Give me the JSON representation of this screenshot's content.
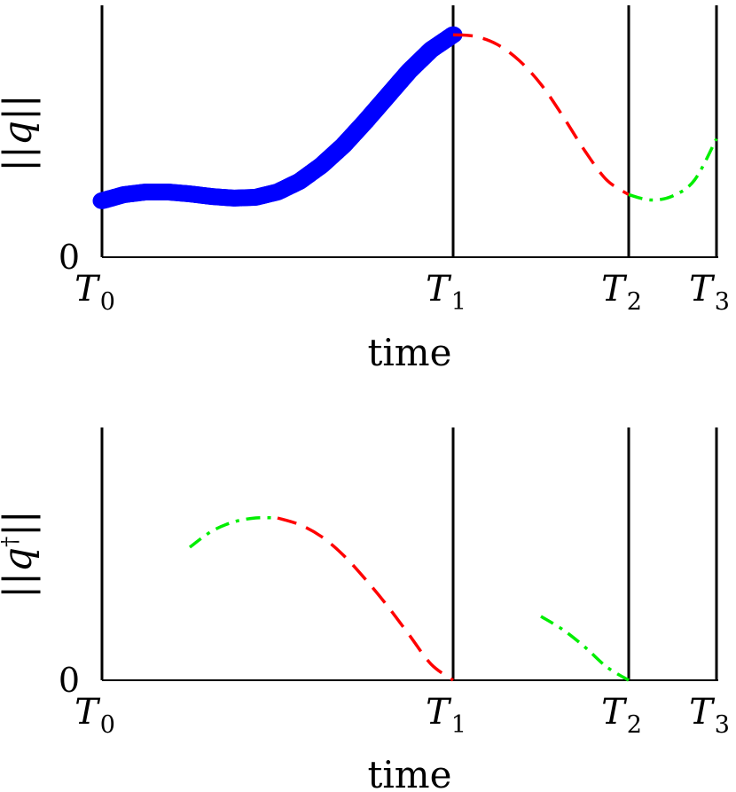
{
  "chart_data": [
    {
      "type": "line",
      "ylabel_prefix": "||",
      "ylabel_var": "q",
      "ylabel_sup": "",
      "ylabel_suffix": "||",
      "xlabel": "time",
      "y_zero_label": "0",
      "ylim": [
        0,
        1
      ],
      "x_ticks": [
        {
          "base": "T",
          "sub": "0",
          "x": 0
        },
        {
          "base": "T",
          "sub": "1",
          "x": 4
        },
        {
          "base": "T",
          "sub": "2",
          "x": 6
        },
        {
          "base": "T",
          "sub": "3",
          "x": 7
        }
      ],
      "vlines": [
        0,
        4,
        6,
        7
      ],
      "series": [
        {
          "style": "circles",
          "color": "#0000ff",
          "points": [
            [
              0,
              0.212
            ],
            [
              0.25,
              0.235
            ],
            [
              0.5,
              0.245
            ],
            [
              0.75,
              0.245
            ],
            [
              1,
              0.238
            ],
            [
              1.25,
              0.228
            ],
            [
              1.5,
              0.222
            ],
            [
              1.75,
              0.225
            ],
            [
              2,
              0.245
            ],
            [
              2.25,
              0.285
            ],
            [
              2.5,
              0.345
            ],
            [
              2.75,
              0.42
            ],
            [
              3,
              0.51
            ],
            [
              3.25,
              0.605
            ],
            [
              3.5,
              0.7
            ],
            [
              3.75,
              0.78
            ],
            [
              4,
              0.836
            ]
          ]
        },
        {
          "style": "dashed",
          "color": "#ff0000",
          "points": [
            [
              4,
              0.836
            ],
            [
              4.25,
              0.83
            ],
            [
              4.5,
              0.8
            ],
            [
              4.75,
              0.74
            ],
            [
              5,
              0.65
            ],
            [
              5.25,
              0.53
            ],
            [
              5.5,
              0.4
            ],
            [
              5.75,
              0.29
            ],
            [
              6,
              0.235
            ]
          ]
        },
        {
          "style": "dashdot",
          "color": "#00ee00",
          "points": [
            [
              6,
              0.235
            ],
            [
              6.25,
              0.215
            ],
            [
              6.5,
              0.23
            ],
            [
              6.75,
              0.29
            ],
            [
              7,
              0.445
            ]
          ]
        }
      ]
    },
    {
      "type": "line",
      "ylabel_prefix": "||",
      "ylabel_var": "q",
      "ylabel_sup": "†",
      "ylabel_suffix": "||",
      "xlabel": "time",
      "y_zero_label": "0",
      "ylim": [
        0,
        1
      ],
      "x_ticks": [
        {
          "base": "T",
          "sub": "0",
          "x": 0
        },
        {
          "base": "T",
          "sub": "1",
          "x": 4
        },
        {
          "base": "T",
          "sub": "2",
          "x": 6
        },
        {
          "base": "T",
          "sub": "3",
          "x": 7
        }
      ],
      "vlines": [
        0,
        4,
        6,
        7
      ],
      "series": [
        {
          "style": "dashdot",
          "color": "#00ee00",
          "points": [
            [
              1,
              0.5
            ],
            [
              1.25,
              0.56
            ],
            [
              1.5,
              0.595
            ],
            [
              1.75,
              0.61
            ],
            [
              2,
              0.61
            ]
          ]
        },
        {
          "style": "dashed",
          "color": "#ff0000",
          "points": [
            [
              2,
              0.61
            ],
            [
              2.25,
              0.585
            ],
            [
              2.5,
              0.54
            ],
            [
              2.75,
              0.47
            ],
            [
              3,
              0.38
            ],
            [
              3.25,
              0.28
            ],
            [
              3.5,
              0.17
            ],
            [
              3.75,
              0.06
            ],
            [
              4,
              0.0
            ]
          ]
        },
        {
          "style": "dashdot",
          "color": "#00ee00",
          "points": [
            [
              5,
              0.24
            ],
            [
              5.25,
              0.19
            ],
            [
              5.5,
              0.125
            ],
            [
              5.75,
              0.05
            ],
            [
              6,
              0.0
            ]
          ]
        }
      ]
    }
  ]
}
